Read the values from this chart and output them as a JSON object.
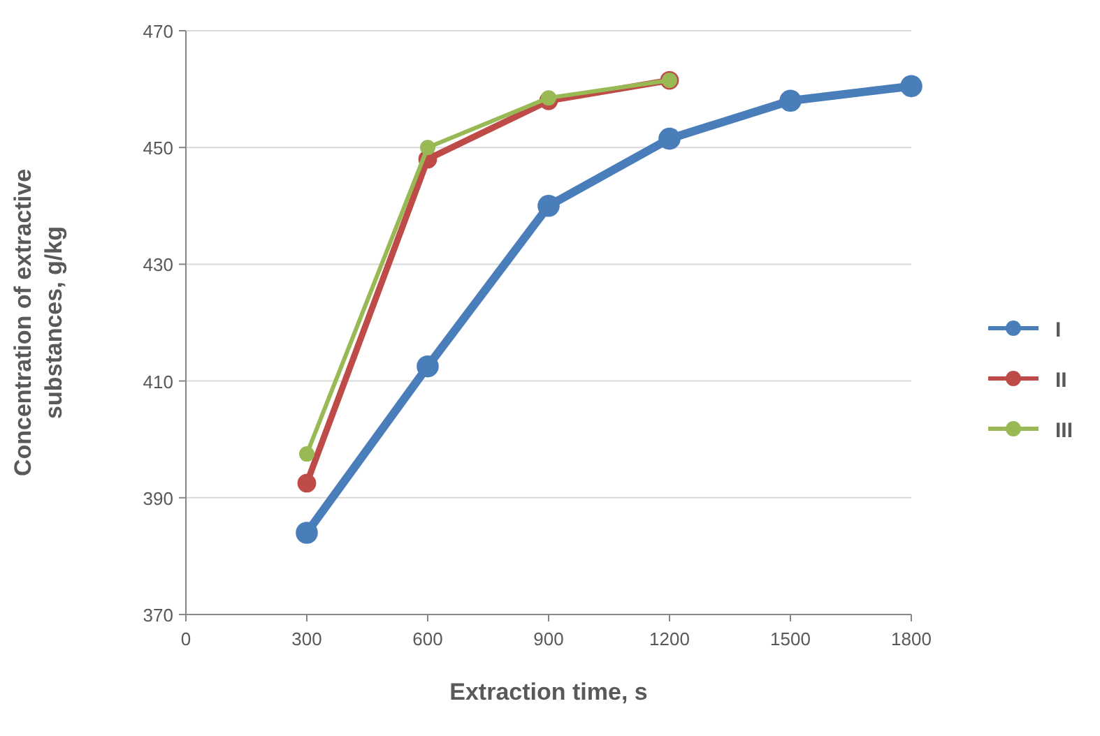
{
  "chart_data": {
    "type": "line",
    "xlabel": "Extraction time, s",
    "ylabel": "Concentration of extractive substances, g/kg",
    "xlim": [
      0,
      1800
    ],
    "xticks": [
      0,
      300,
      600,
      900,
      1200,
      1500,
      1800
    ],
    "ylim": [
      370,
      470
    ],
    "yticks": [
      370,
      390,
      410,
      430,
      450,
      470
    ],
    "grid": "y",
    "legend": "right",
    "marker": "circle",
    "series": [
      {
        "name": "I",
        "color": "#4a7ebb",
        "x": [
          300,
          600,
          900,
          1200,
          1500,
          1800
        ],
        "values": [
          384,
          412.5,
          440,
          451.5,
          458,
          460.5
        ]
      },
      {
        "name": "II",
        "color": "#be4b48",
        "x": [
          300,
          600,
          900,
          1200
        ],
        "values": [
          392.5,
          448,
          458,
          461.5
        ]
      },
      {
        "name": "III",
        "color": "#98b954",
        "x": [
          300,
          600,
          900,
          1200
        ],
        "values": [
          397.5,
          450,
          458.5,
          461.5
        ]
      }
    ]
  }
}
